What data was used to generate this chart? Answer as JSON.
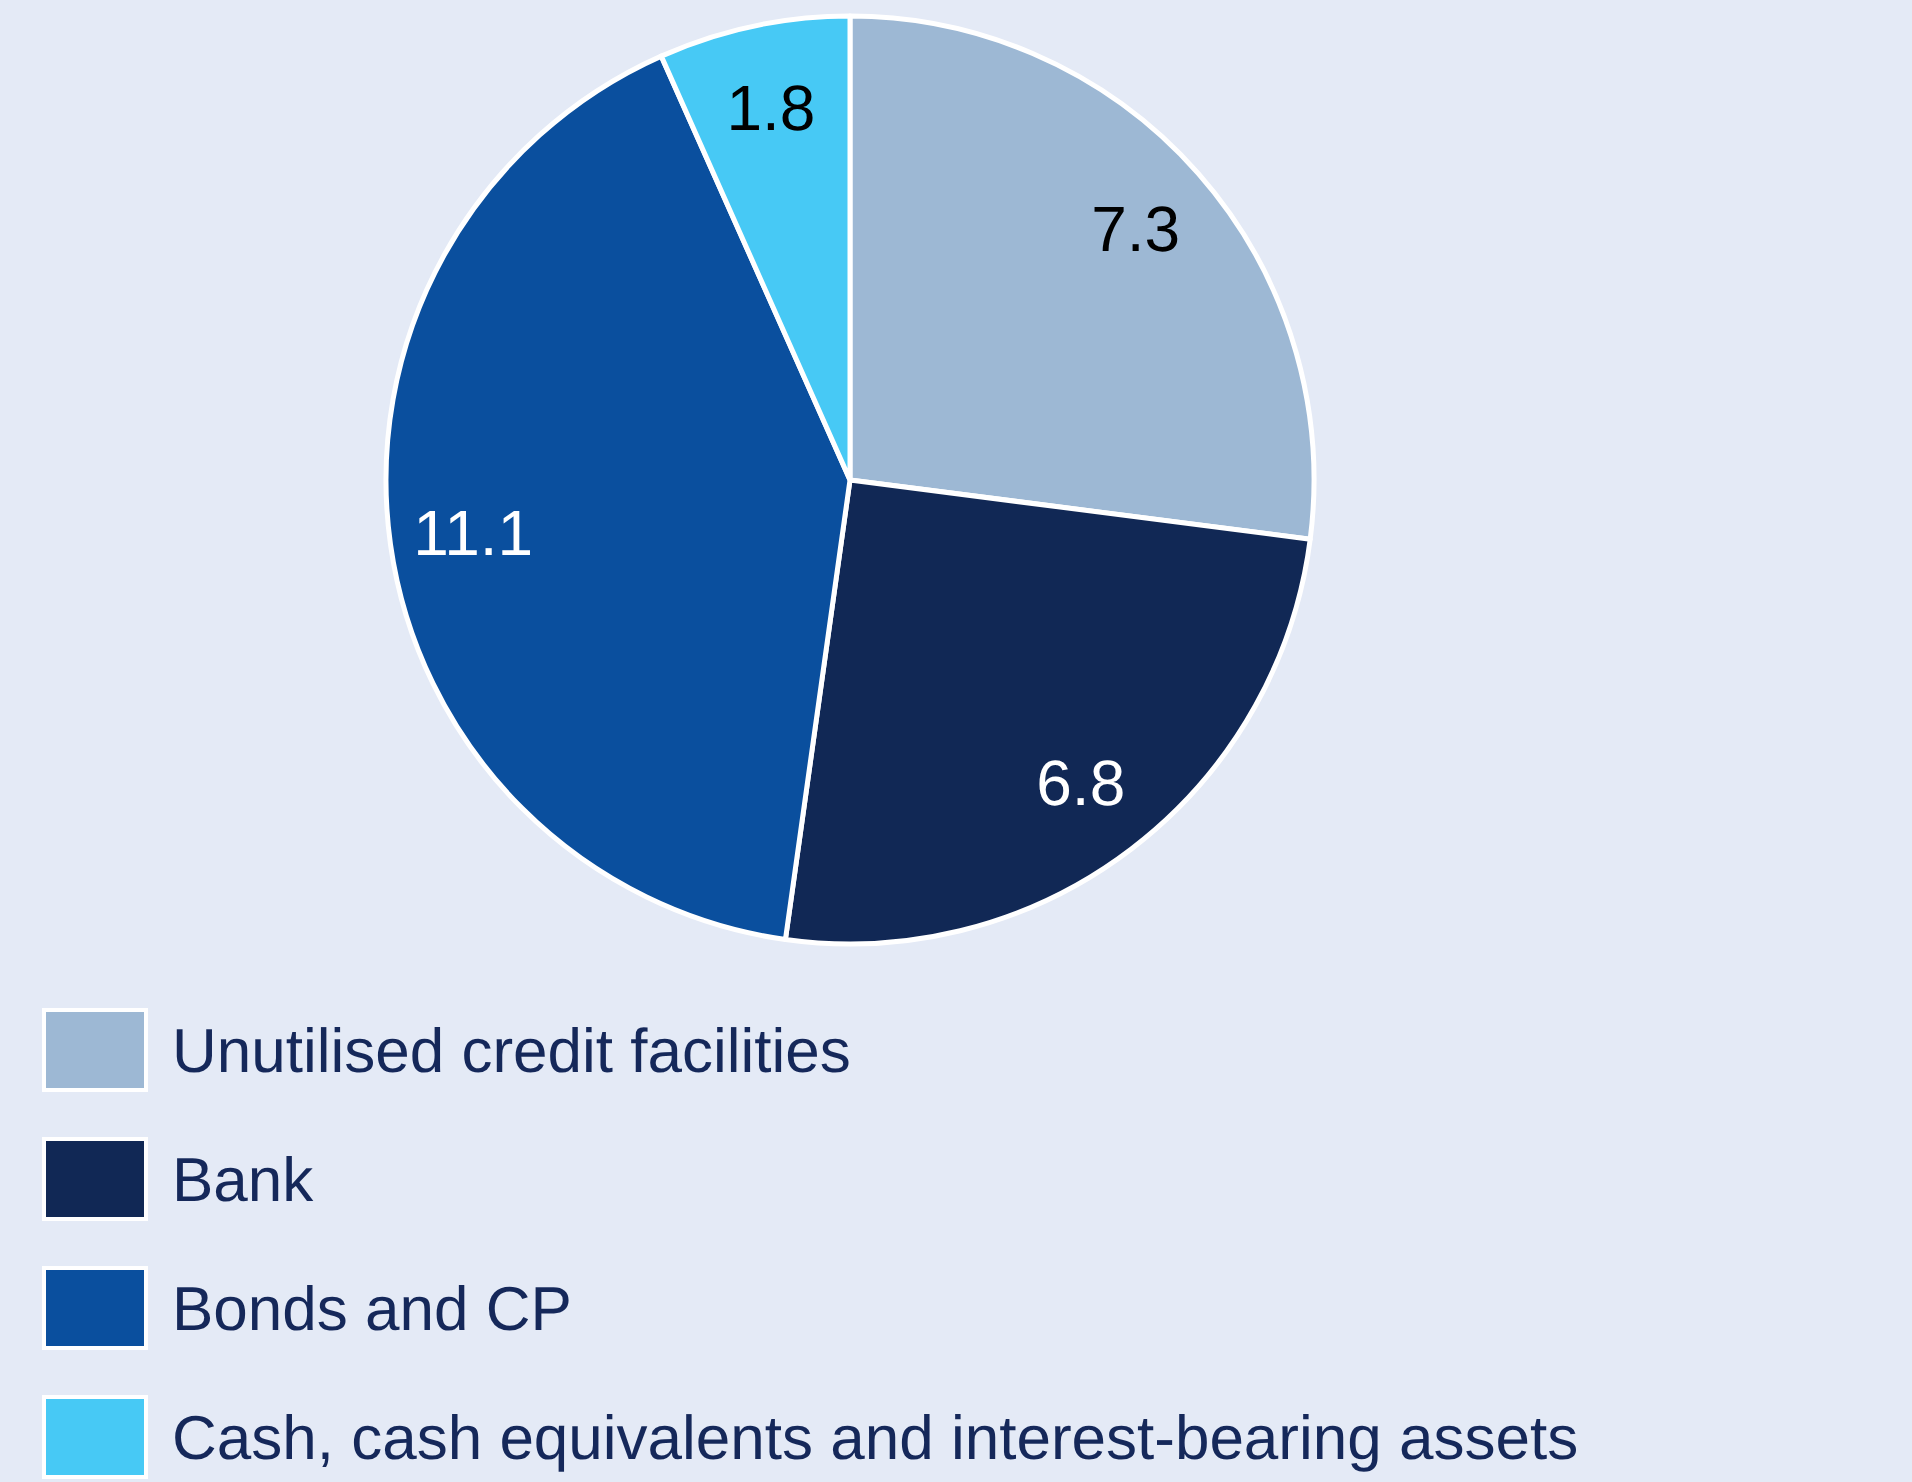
{
  "chart_data": {
    "type": "pie",
    "categories": [
      "Unutilised credit facilities",
      "Bank",
      "Bonds and CP",
      "Cash, cash equivalents and interest-bearing assets"
    ],
    "values": [
      7.3,
      6.8,
      11.1,
      1.8
    ],
    "colors": [
      "#9db8d4",
      "#112855",
      "#0a4f9e",
      "#47c9f5"
    ],
    "data_labels": true,
    "legend": "bottom"
  }
}
